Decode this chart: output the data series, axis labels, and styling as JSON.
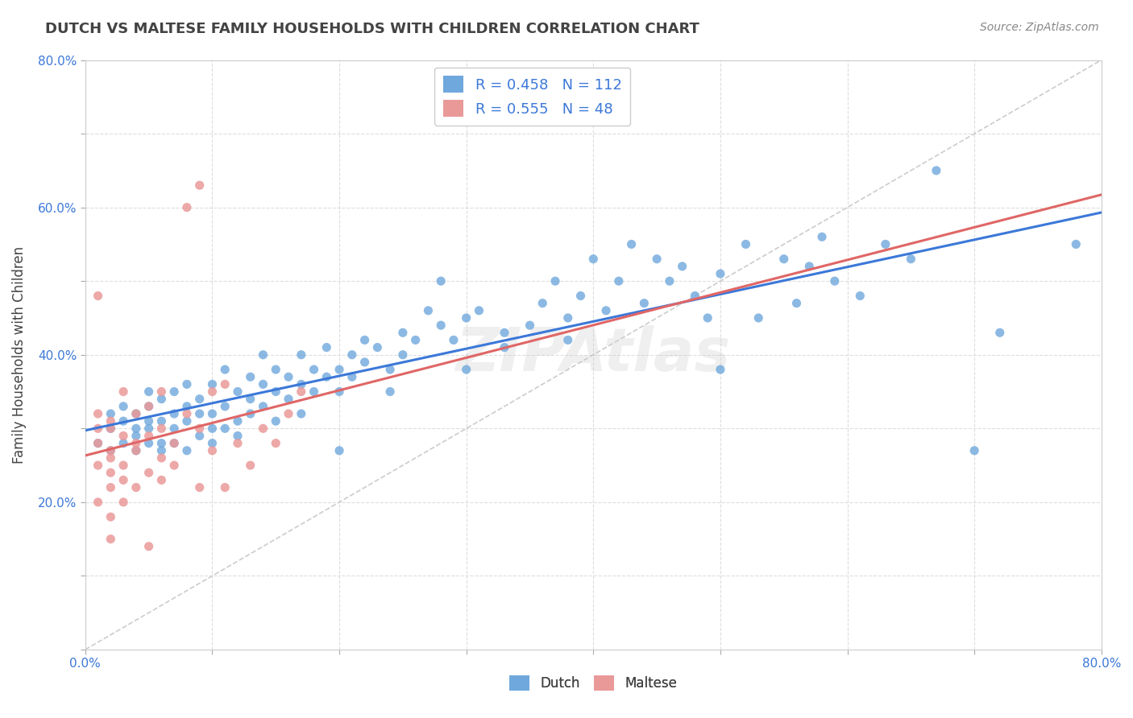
{
  "title": "DUTCH VS MALTESE FAMILY HOUSEHOLDS WITH CHILDREN CORRELATION CHART",
  "source": "Source: ZipAtlas.com",
  "ylabel": "Family Households with Children",
  "xlim": [
    0.0,
    0.8
  ],
  "ylim": [
    0.0,
    0.8
  ],
  "xticks": [
    0.0,
    0.1,
    0.2,
    0.3,
    0.4,
    0.5,
    0.6,
    0.7,
    0.8
  ],
  "yticks": [
    0.0,
    0.1,
    0.2,
    0.3,
    0.4,
    0.5,
    0.6,
    0.7,
    0.8
  ],
  "xticklabels": [
    "0.0%",
    "",
    "",
    "",
    "",
    "",
    "",
    "",
    "80.0%"
  ],
  "yticklabels": [
    "",
    "20.0%",
    "",
    "40.0%",
    "",
    "60.0%",
    "",
    "80.0%"
  ],
  "dutch_color": "#6fa8dc",
  "maltese_color": "#ea9999",
  "dutch_R": 0.458,
  "dutch_N": 112,
  "maltese_R": 0.555,
  "maltese_N": 48,
  "dutch_line_color": "#3c78d8",
  "maltese_line_color": "#e06666",
  "diagonal_color": "#cccccc",
  "background_color": "#ffffff",
  "grid_color": "#dddddd",
  "title_color": "#434343",
  "source_color": "#888888",
  "stat_color": "#3c78d8",
  "tick_color": "#3c78d8",
  "watermark": "ZIPAtlas",
  "dutch_scatter": [
    [
      0.01,
      0.28
    ],
    [
      0.02,
      0.32
    ],
    [
      0.02,
      0.27
    ],
    [
      0.02,
      0.3
    ],
    [
      0.03,
      0.31
    ],
    [
      0.03,
      0.33
    ],
    [
      0.03,
      0.28
    ],
    [
      0.04,
      0.3
    ],
    [
      0.04,
      0.32
    ],
    [
      0.04,
      0.29
    ],
    [
      0.04,
      0.27
    ],
    [
      0.05,
      0.31
    ],
    [
      0.05,
      0.28
    ],
    [
      0.05,
      0.3
    ],
    [
      0.05,
      0.33
    ],
    [
      0.05,
      0.35
    ],
    [
      0.06,
      0.28
    ],
    [
      0.06,
      0.31
    ],
    [
      0.06,
      0.34
    ],
    [
      0.06,
      0.27
    ],
    [
      0.07,
      0.32
    ],
    [
      0.07,
      0.3
    ],
    [
      0.07,
      0.35
    ],
    [
      0.07,
      0.28
    ],
    [
      0.08,
      0.31
    ],
    [
      0.08,
      0.27
    ],
    [
      0.08,
      0.33
    ],
    [
      0.08,
      0.36
    ],
    [
      0.09,
      0.32
    ],
    [
      0.09,
      0.29
    ],
    [
      0.09,
      0.34
    ],
    [
      0.1,
      0.3
    ],
    [
      0.1,
      0.32
    ],
    [
      0.1,
      0.36
    ],
    [
      0.1,
      0.28
    ],
    [
      0.11,
      0.33
    ],
    [
      0.11,
      0.38
    ],
    [
      0.11,
      0.3
    ],
    [
      0.12,
      0.35
    ],
    [
      0.12,
      0.31
    ],
    [
      0.12,
      0.29
    ],
    [
      0.13,
      0.34
    ],
    [
      0.13,
      0.37
    ],
    [
      0.13,
      0.32
    ],
    [
      0.14,
      0.36
    ],
    [
      0.14,
      0.33
    ],
    [
      0.14,
      0.4
    ],
    [
      0.15,
      0.35
    ],
    [
      0.15,
      0.31
    ],
    [
      0.15,
      0.38
    ],
    [
      0.16,
      0.37
    ],
    [
      0.16,
      0.34
    ],
    [
      0.17,
      0.36
    ],
    [
      0.17,
      0.4
    ],
    [
      0.17,
      0.32
    ],
    [
      0.18,
      0.38
    ],
    [
      0.18,
      0.35
    ],
    [
      0.19,
      0.37
    ],
    [
      0.19,
      0.41
    ],
    [
      0.2,
      0.38
    ],
    [
      0.2,
      0.35
    ],
    [
      0.2,
      0.27
    ],
    [
      0.21,
      0.4
    ],
    [
      0.21,
      0.37
    ],
    [
      0.22,
      0.39
    ],
    [
      0.22,
      0.42
    ],
    [
      0.23,
      0.41
    ],
    [
      0.24,
      0.38
    ],
    [
      0.24,
      0.35
    ],
    [
      0.25,
      0.4
    ],
    [
      0.25,
      0.43
    ],
    [
      0.26,
      0.42
    ],
    [
      0.27,
      0.46
    ],
    [
      0.28,
      0.44
    ],
    [
      0.28,
      0.5
    ],
    [
      0.29,
      0.42
    ],
    [
      0.3,
      0.45
    ],
    [
      0.3,
      0.38
    ],
    [
      0.31,
      0.46
    ],
    [
      0.33,
      0.43
    ],
    [
      0.33,
      0.41
    ],
    [
      0.35,
      0.44
    ],
    [
      0.36,
      0.47
    ],
    [
      0.37,
      0.5
    ],
    [
      0.38,
      0.45
    ],
    [
      0.38,
      0.42
    ],
    [
      0.39,
      0.48
    ],
    [
      0.4,
      0.53
    ],
    [
      0.41,
      0.46
    ],
    [
      0.42,
      0.5
    ],
    [
      0.43,
      0.55
    ],
    [
      0.44,
      0.47
    ],
    [
      0.45,
      0.53
    ],
    [
      0.46,
      0.5
    ],
    [
      0.47,
      0.52
    ],
    [
      0.48,
      0.48
    ],
    [
      0.49,
      0.45
    ],
    [
      0.5,
      0.38
    ],
    [
      0.5,
      0.51
    ],
    [
      0.52,
      0.55
    ],
    [
      0.53,
      0.45
    ],
    [
      0.55,
      0.53
    ],
    [
      0.56,
      0.47
    ],
    [
      0.57,
      0.52
    ],
    [
      0.58,
      0.56
    ],
    [
      0.59,
      0.5
    ],
    [
      0.61,
      0.48
    ],
    [
      0.63,
      0.55
    ],
    [
      0.65,
      0.53
    ],
    [
      0.67,
      0.65
    ],
    [
      0.7,
      0.27
    ],
    [
      0.72,
      0.43
    ],
    [
      0.78,
      0.55
    ]
  ],
  "maltese_scatter": [
    [
      0.01,
      0.28
    ],
    [
      0.01,
      0.3
    ],
    [
      0.01,
      0.25
    ],
    [
      0.01,
      0.32
    ],
    [
      0.01,
      0.2
    ],
    [
      0.02,
      0.27
    ],
    [
      0.02,
      0.31
    ],
    [
      0.02,
      0.24
    ],
    [
      0.02,
      0.3
    ],
    [
      0.02,
      0.22
    ],
    [
      0.02,
      0.26
    ],
    [
      0.02,
      0.18
    ],
    [
      0.03,
      0.29
    ],
    [
      0.03,
      0.23
    ],
    [
      0.03,
      0.35
    ],
    [
      0.03,
      0.25
    ],
    [
      0.04,
      0.27
    ],
    [
      0.04,
      0.32
    ],
    [
      0.04,
      0.22
    ],
    [
      0.04,
      0.28
    ],
    [
      0.05,
      0.14
    ],
    [
      0.05,
      0.33
    ],
    [
      0.05,
      0.24
    ],
    [
      0.05,
      0.29
    ],
    [
      0.06,
      0.26
    ],
    [
      0.06,
      0.35
    ],
    [
      0.06,
      0.23
    ],
    [
      0.06,
      0.3
    ],
    [
      0.07,
      0.25
    ],
    [
      0.07,
      0.28
    ],
    [
      0.08,
      0.32
    ],
    [
      0.08,
      0.6
    ],
    [
      0.09,
      0.22
    ],
    [
      0.09,
      0.63
    ],
    [
      0.09,
      0.3
    ],
    [
      0.1,
      0.27
    ],
    [
      0.1,
      0.35
    ],
    [
      0.11,
      0.22
    ],
    [
      0.11,
      0.36
    ],
    [
      0.12,
      0.28
    ],
    [
      0.13,
      0.25
    ],
    [
      0.14,
      0.3
    ],
    [
      0.15,
      0.28
    ],
    [
      0.16,
      0.32
    ],
    [
      0.17,
      0.35
    ],
    [
      0.01,
      0.48
    ],
    [
      0.02,
      0.15
    ],
    [
      0.03,
      0.2
    ]
  ]
}
